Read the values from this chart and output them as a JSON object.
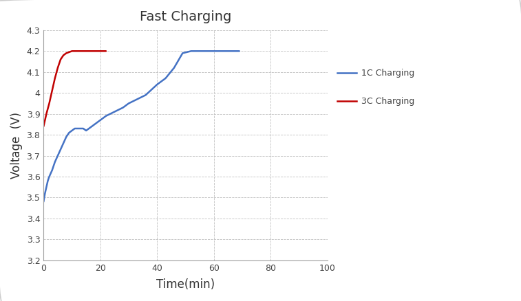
{
  "title": "Fast Charging",
  "xlabel": "Time(min)",
  "ylabel": "Voltage  (V)",
  "xlim": [
    0,
    100
  ],
  "ylim": [
    3.2,
    4.3
  ],
  "xticks": [
    0,
    20,
    40,
    60,
    80,
    100
  ],
  "yticks": [
    3.2,
    3.3,
    3.4,
    3.5,
    3.6,
    3.7,
    3.8,
    3.9,
    4.0,
    4.1,
    4.2,
    4.3
  ],
  "1c_x": [
    0,
    0.5,
    1,
    1.5,
    2,
    3,
    4,
    5,
    6,
    7,
    8,
    9,
    10,
    11,
    12,
    13,
    14,
    15,
    16,
    17,
    18,
    19,
    20,
    22,
    25,
    28,
    30,
    33,
    36,
    40,
    43,
    46,
    49,
    52,
    55,
    58,
    61,
    65,
    69
  ],
  "1c_y": [
    3.48,
    3.52,
    3.55,
    3.58,
    3.6,
    3.63,
    3.67,
    3.7,
    3.73,
    3.76,
    3.79,
    3.81,
    3.82,
    3.83,
    3.83,
    3.83,
    3.83,
    3.82,
    3.83,
    3.84,
    3.85,
    3.86,
    3.87,
    3.89,
    3.91,
    3.93,
    3.95,
    3.97,
    3.99,
    4.04,
    4.07,
    4.12,
    4.19,
    4.2,
    4.2,
    4.2,
    4.2,
    4.2,
    4.2
  ],
  "3c_x": [
    0,
    0.5,
    1,
    2,
    3,
    4,
    5,
    6,
    7,
    8,
    9,
    10,
    11,
    12,
    13,
    14,
    15,
    16,
    17,
    18,
    19,
    20,
    21,
    22
  ],
  "3c_y": [
    3.84,
    3.87,
    3.9,
    3.95,
    4.01,
    4.07,
    4.12,
    4.16,
    4.18,
    4.19,
    4.195,
    4.2,
    4.2,
    4.2,
    4.2,
    4.2,
    4.2,
    4.2,
    4.2,
    4.2,
    4.2,
    4.2,
    4.2,
    4.2
  ],
  "1c_color": "#4472C4",
  "3c_color": "#C00000",
  "1c_label": "1C Charging",
  "3c_label": "3C Charging",
  "background_color": "#ffffff",
  "plot_bg_color": "#ffffff",
  "grid_color": "#c0c0c0",
  "spine_color": "#a0a0a0",
  "title_fontsize": 14,
  "label_fontsize": 12,
  "tick_fontsize": 9,
  "legend_fontsize": 9
}
